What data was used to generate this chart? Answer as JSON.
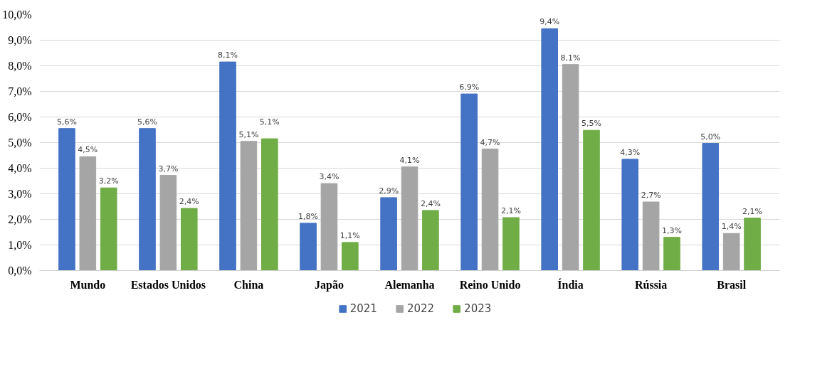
{
  "chart_data": {
    "type": "bar",
    "categories": [
      "Mundo",
      "Estados Unidos",
      "China",
      "Japão",
      "Alemanha",
      "Reino Unido",
      "Índia",
      "Rússia",
      "Brasil"
    ],
    "series": [
      {
        "name": "2021",
        "color": "#4472c4",
        "values": [
          5.55,
          5.55,
          8.15,
          1.85,
          2.85,
          6.9,
          9.45,
          4.35,
          4.97
        ],
        "value_labels": [
          "5,6%",
          "5,6%",
          "8,1%",
          "1,8%",
          "2,9%",
          "6,9%",
          "9,4%",
          "4,3%",
          "5,0%"
        ]
      },
      {
        "name": "2022",
        "color": "#a5a5a5",
        "values": [
          4.45,
          3.72,
          5.05,
          3.4,
          4.05,
          4.75,
          8.05,
          2.68,
          1.45
        ],
        "value_labels": [
          "4,5%",
          "3,7%",
          "5,1%",
          "3,4%",
          "4,1%",
          "4,7%",
          "8,1%",
          "2,7%",
          "1,4%"
        ]
      },
      {
        "name": "2023",
        "color": "#70ad47",
        "values": [
          3.23,
          2.43,
          5.15,
          1.1,
          2.35,
          2.07,
          5.48,
          1.3,
          2.05
        ],
        "value_labels": [
          "3,2%",
          "2,4%",
          "5,1%",
          "1,1%",
          "2,4%",
          "2,1%",
          "5,5%",
          "1,3%",
          "2,1%"
        ]
      }
    ],
    "ylim": [
      0,
      10
    ],
    "yticks": [
      {
        "value": 0,
        "label": "0,0%"
      },
      {
        "value": 1,
        "label": "1,0%"
      },
      {
        "value": 2,
        "label": "2,0%"
      },
      {
        "value": 3,
        "label": "3,0%"
      },
      {
        "value": 4,
        "label": "4,0%"
      },
      {
        "value": 5,
        "label": "5,0%"
      },
      {
        "value": 6,
        "label": "6,0%"
      },
      {
        "value": 7,
        "label": "7,0%"
      },
      {
        "value": 8,
        "label": "8,0%"
      },
      {
        "value": 9,
        "label": "9,0%"
      },
      {
        "value": 10,
        "label": "10,0%"
      }
    ],
    "grid": "y",
    "legend": "bottom"
  }
}
